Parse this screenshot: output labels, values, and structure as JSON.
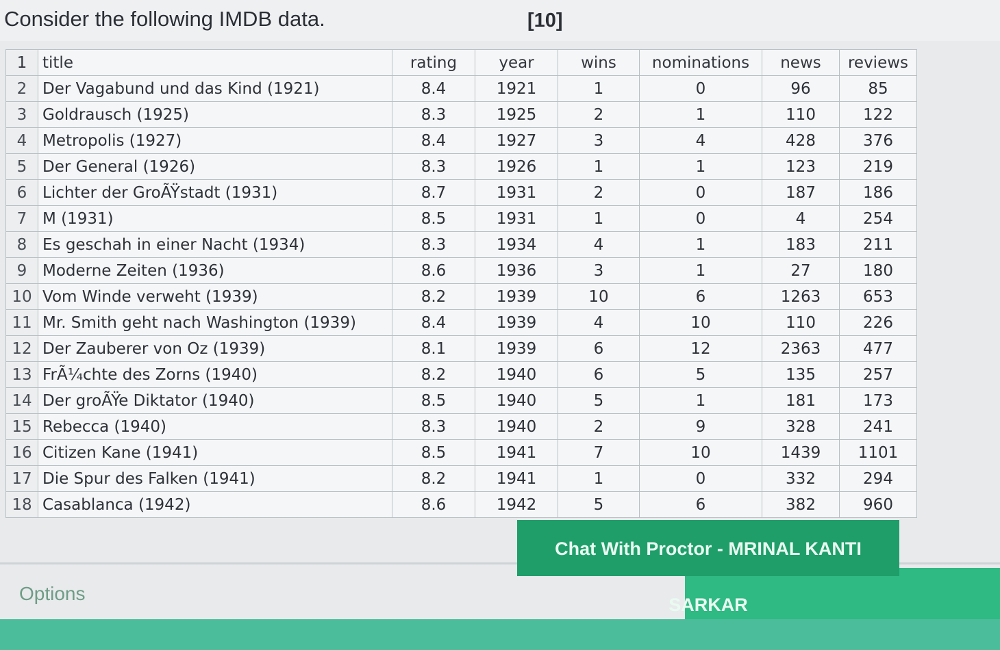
{
  "question": {
    "text": "Consider the following IMDB data.",
    "marks": "[10]"
  },
  "table": {
    "header": {
      "row_number": "1",
      "columns": [
        "title",
        "rating",
        "year",
        "wins",
        "nominations",
        "news",
        "reviews"
      ]
    },
    "rows": [
      {
        "n": "2",
        "title": "Der Vagabund und das Kind (1921)",
        "rating": "8.4",
        "year": "1921",
        "wins": "1",
        "nominations": "0",
        "news": "96",
        "reviews": "85"
      },
      {
        "n": "3",
        "title": "Goldrausch (1925)",
        "rating": "8.3",
        "year": "1925",
        "wins": "2",
        "nominations": "1",
        "news": "110",
        "reviews": "122"
      },
      {
        "n": "4",
        "title": "Metropolis (1927)",
        "rating": "8.4",
        "year": "1927",
        "wins": "3",
        "nominations": "4",
        "news": "428",
        "reviews": "376"
      },
      {
        "n": "5",
        "title": "Der General (1926)",
        "rating": "8.3",
        "year": "1926",
        "wins": "1",
        "nominations": "1",
        "news": "123",
        "reviews": "219"
      },
      {
        "n": "6",
        "title": "Lichter der GroÃŸstadt (1931)",
        "rating": "8.7",
        "year": "1931",
        "wins": "2",
        "nominations": "0",
        "news": "187",
        "reviews": "186"
      },
      {
        "n": "7",
        "title": "M (1931)",
        "rating": "8.5",
        "year": "1931",
        "wins": "1",
        "nominations": "0",
        "news": "4",
        "reviews": "254"
      },
      {
        "n": "8",
        "title": "Es geschah in einer Nacht (1934)",
        "rating": "8.3",
        "year": "1934",
        "wins": "4",
        "nominations": "1",
        "news": "183",
        "reviews": "211"
      },
      {
        "n": "9",
        "title": "Moderne Zeiten (1936)",
        "rating": "8.6",
        "year": "1936",
        "wins": "3",
        "nominations": "1",
        "news": "27",
        "reviews": "180"
      },
      {
        "n": "10",
        "title": "Vom Winde verweht (1939)",
        "rating": "8.2",
        "year": "1939",
        "wins": "10",
        "nominations": "6",
        "news": "1263",
        "reviews": "653"
      },
      {
        "n": "11",
        "title": "Mr. Smith geht nach Washington (1939)",
        "rating": "8.4",
        "year": "1939",
        "wins": "4",
        "nominations": "10",
        "news": "110",
        "reviews": "226"
      },
      {
        "n": "12",
        "title": "Der Zauberer von Oz (1939)",
        "rating": "8.1",
        "year": "1939",
        "wins": "6",
        "nominations": "12",
        "news": "2363",
        "reviews": "477"
      },
      {
        "n": "13",
        "title": "FrÃ¼chte des Zorns (1940)",
        "rating": "8.2",
        "year": "1940",
        "wins": "6",
        "nominations": "5",
        "news": "135",
        "reviews": "257"
      },
      {
        "n": "14",
        "title": "Der groÃŸe Diktator (1940)",
        "rating": "8.5",
        "year": "1940",
        "wins": "5",
        "nominations": "1",
        "news": "181",
        "reviews": "173"
      },
      {
        "n": "15",
        "title": "Rebecca (1940)",
        "rating": "8.3",
        "year": "1940",
        "wins": "2",
        "nominations": "9",
        "news": "328",
        "reviews": "241"
      },
      {
        "n": "16",
        "title": "Citizen Kane (1941)",
        "rating": "8.5",
        "year": "1941",
        "wins": "7",
        "nominations": "10",
        "news": "1439",
        "reviews": "1101"
      },
      {
        "n": "17",
        "title": "Die Spur des Falken (1941)",
        "rating": "8.2",
        "year": "1941",
        "wins": "1",
        "nominations": "0",
        "news": "332",
        "reviews": "294"
      },
      {
        "n": "18",
        "title": "Casablanca (1942)",
        "rating": "8.6",
        "year": "1942",
        "wins": "5",
        "nominations": "6",
        "news": "382",
        "reviews": "960"
      }
    ]
  },
  "chat_button": {
    "label": "Chat With Proctor - MRINAL KANTI SARKAR"
  },
  "options": {
    "label": "Options"
  },
  "colors": {
    "accent_green": "#1f9e6a",
    "band_green": "#2fb983",
    "bar_teal": "#4cbd9b",
    "options_text": "#6f9c86"
  }
}
